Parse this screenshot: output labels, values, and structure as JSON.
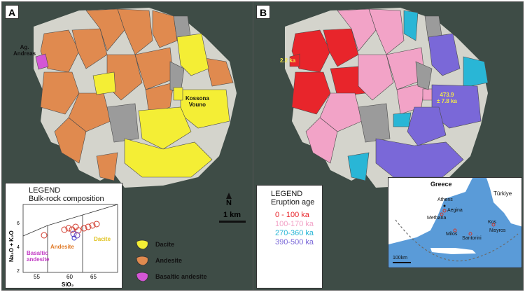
{
  "panel_a": {
    "label": "A",
    "map_labels": {
      "ag_andreas": "Ag.\nAndreas",
      "kossona_vouno": "Kossona\nVouno"
    },
    "legend": {
      "title": "LEGEND",
      "subtitle": "Bulk-rock composition",
      "y_axis_label": "Na₂O + K₂O",
      "x_axis_label": "SiO₂",
      "x_ticks": [
        "55",
        "60",
        "65"
      ],
      "y_ticks": [
        "2",
        "4",
        "6"
      ],
      "fields": {
        "basaltic_andesite": "Basaltic\nandesite",
        "andesite": "Andesite",
        "dacite": "Dacite"
      }
    }
  },
  "panel_b": {
    "label": "B",
    "age_labels": {
      "young": "2.2 ka",
      "old": "473.9\n± 7.8 ka"
    },
    "legend": {
      "title": "LEGEND",
      "subtitle": "Eruption age",
      "items": [
        {
          "label": "0 - 100 ka",
          "color": "#e8252b"
        },
        {
          "label": "100-170 ka",
          "color": "#f2a3c7"
        },
        {
          "label": "270-360 ka",
          "color": "#29b6d6"
        },
        {
          "label": "390-500 ka",
          "color": "#7a68d8"
        }
      ]
    }
  },
  "north_label": "N",
  "scale_label": "1 km",
  "lithology_legend": [
    {
      "label": "Dacite",
      "color": "#f4ee35"
    },
    {
      "label": "Andesite",
      "color": "#e08a4f"
    },
    {
      "label": "Basaltic andesite",
      "color": "#d456d6"
    }
  ],
  "inset_map": {
    "labels": {
      "greece": "Greece",
      "turkiye": "Türkiye",
      "athens": "Athens",
      "aegina": "Aegina",
      "methana": "Methana",
      "milos": "Milos",
      "santorini": "Santorini",
      "kos": "Kos",
      "nisyros": "Nisyros",
      "scale": "100km"
    }
  },
  "colors": {
    "dacite": "#f4ee35",
    "andesite": "#e08a4f",
    "basaltic_andesite": "#d456d6",
    "undifferentiated": "#9b9b9b",
    "background_terrain": "#d6d6d0",
    "sea": "#3b4a44"
  }
}
